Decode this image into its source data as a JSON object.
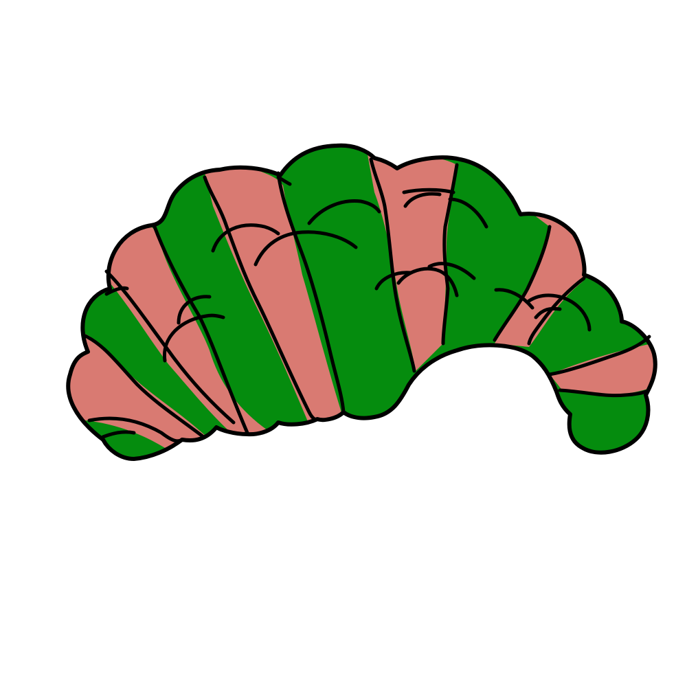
{
  "illustration": {
    "subject": "croissant-icon",
    "colors": {
      "background": "#ffffff",
      "green": "#058c0e",
      "pink": "#d97a72",
      "outline": "#000000"
    },
    "stripe_pattern": [
      "pink",
      "green",
      "pink",
      "green",
      "pink",
      "green",
      "pink",
      "green",
      "pink",
      "green"
    ]
  }
}
